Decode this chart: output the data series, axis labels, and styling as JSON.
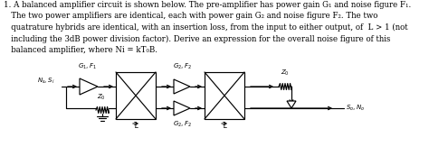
{
  "bg_color": "#ffffff",
  "text_color": "#000000",
  "fig_width": 4.74,
  "fig_height": 1.73,
  "dpi": 100,
  "text_lines": [
    "1. A balanced amplifier circuit is shown below. The pre-amplifier has power gain G₁ and noise figure F₁.",
    "   The two power amplifiers are identical, each with power gain G₂ and noise figure F₂. The two",
    "   quatrature hybrids are identical, with an insertion loss, from the input to either output, of  L > 1 (not",
    "   including the 3dB power division factor). Derive an expression for the overall noise figure of this",
    "   balanced amplifier, where Ni = kT₀B."
  ]
}
